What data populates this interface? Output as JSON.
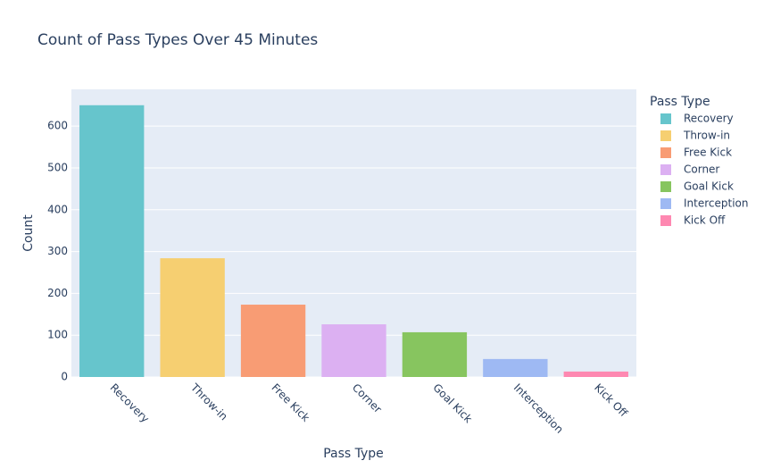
{
  "chart_data": {
    "type": "bar",
    "title": "Count of Pass Types Over 45 Minutes",
    "x_label": "Pass Type",
    "y_label": "Count",
    "legend_title": "Pass Type",
    "categories": [
      "Recovery",
      "Throw-in",
      "Free Kick",
      "Corner",
      "Goal Kick",
      "Interception",
      "Kick Off"
    ],
    "series": [
      {
        "name": "Recovery",
        "color": "#66c5cc",
        "values": [
          650,
          null,
          null,
          null,
          null,
          null,
          null
        ]
      },
      {
        "name": "Throw-in",
        "color": "#f6cf71",
        "values": [
          null,
          284,
          null,
          null,
          null,
          null,
          null
        ]
      },
      {
        "name": "Free Kick",
        "color": "#f89c74",
        "values": [
          null,
          null,
          173,
          null,
          null,
          null,
          null
        ]
      },
      {
        "name": "Corner",
        "color": "#dcb0f2",
        "values": [
          null,
          null,
          null,
          126,
          null,
          null,
          null
        ]
      },
      {
        "name": "Goal Kick",
        "color": "#87c55f",
        "values": [
          null,
          null,
          null,
          null,
          107,
          null,
          null
        ]
      },
      {
        "name": "Interception",
        "color": "#9eb9f3",
        "values": [
          null,
          null,
          null,
          null,
          null,
          43,
          null
        ]
      },
      {
        "name": "Kick Off",
        "color": "#fe88b1",
        "values": [
          null,
          null,
          null,
          null,
          null,
          null,
          13
        ]
      }
    ],
    "ylim": [
      0,
      688
    ],
    "yticks": [
      0,
      100,
      200,
      300,
      400,
      500,
      600
    ],
    "grid": true,
    "legend": "right"
  }
}
